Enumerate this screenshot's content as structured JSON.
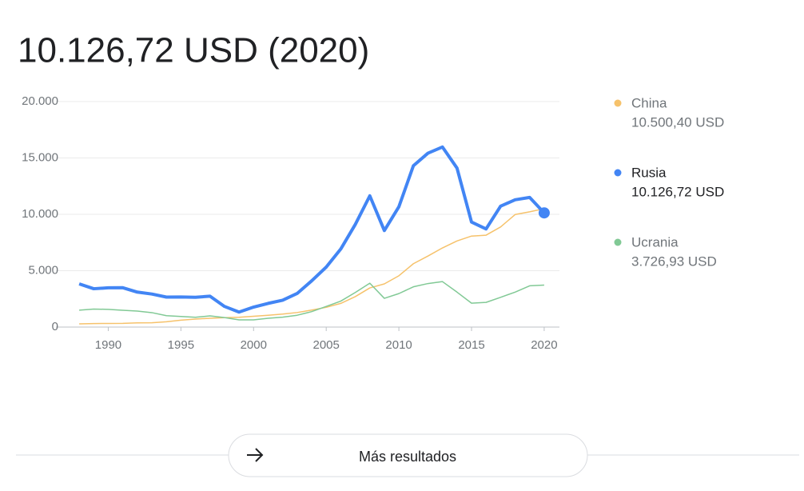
{
  "chart_data": {
    "type": "line",
    "title": "10.126,72 USD (2020)",
    "x": [
      1988,
      1989,
      1990,
      1991,
      1992,
      1993,
      1994,
      1995,
      1996,
      1997,
      1998,
      1999,
      2000,
      2001,
      2002,
      2003,
      2004,
      2005,
      2006,
      2007,
      2008,
      2009,
      2010,
      2011,
      2012,
      2013,
      2014,
      2015,
      2016,
      2017,
      2018,
      2019,
      2020
    ],
    "series": [
      {
        "name": "China",
        "color": "#f6c26b",
        "value_label": "10.500,40 USD",
        "selected": false,
        "values": [
          280,
          310,
          320,
          330,
          370,
          380,
          470,
          610,
          710,
          780,
          830,
          870,
          960,
          1050,
          1150,
          1290,
          1510,
          1750,
          2100,
          2700,
          3470,
          3830,
          4550,
          5620,
          6300,
          7020,
          7640,
          8070,
          8150,
          8880,
          9980,
          10220,
          10500.4
        ]
      },
      {
        "name": "Rusia",
        "color": "#4285f4",
        "value_label": "10.126,72 USD",
        "selected": true,
        "values": [
          3830,
          3400,
          3480,
          3490,
          3100,
          2930,
          2660,
          2670,
          2640,
          2740,
          1830,
          1330,
          1770,
          2100,
          2380,
          2980,
          4100,
          5320,
          6920,
          9100,
          11640,
          8560,
          10670,
          14310,
          15420,
          15970,
          14100,
          9310,
          8700,
          10720,
          11290,
          11500,
          10126.72
        ]
      },
      {
        "name": "Ucrania",
        "color": "#81c995",
        "value_label": "3.726,93 USD",
        "selected": false,
        "values": [
          1500,
          1600,
          1570,
          1490,
          1420,
          1280,
          1010,
          940,
          870,
          990,
          840,
          640,
          640,
          780,
          880,
          1050,
          1370,
          1830,
          2300,
          3070,
          3890,
          2550,
          2970,
          3570,
          3860,
          4030,
          3100,
          2120,
          2190,
          2640,
          3100,
          3660,
          3726.93
        ]
      }
    ],
    "xlim": [
      1986.4,
      2021.05
    ],
    "xticks": [
      1990,
      1995,
      2000,
      2005,
      2010,
      2015,
      2020
    ],
    "ylim": [
      0,
      20000
    ],
    "yticks": [
      0,
      {
        "value": 5000,
        "label": "5.000"
      },
      {
        "value": 10000,
        "label": "10.000"
      },
      {
        "value": 15000,
        "label": "15.000"
      },
      {
        "value": 20000,
        "label": "20.000"
      }
    ],
    "grid": true,
    "button": "Más resultados"
  }
}
